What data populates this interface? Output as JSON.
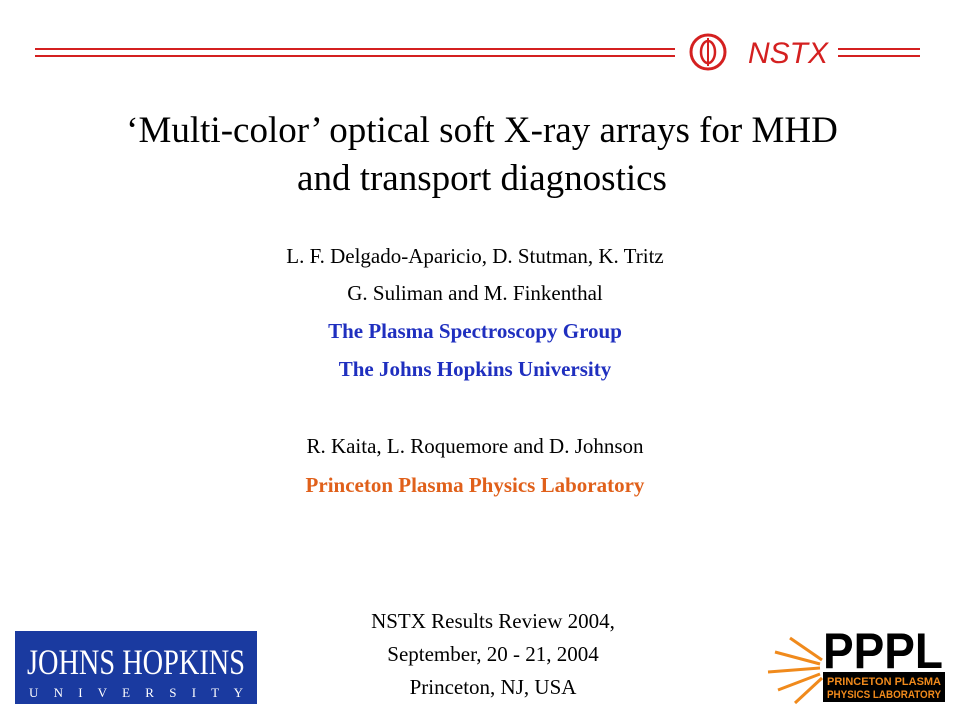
{
  "header": {
    "logo_text": "NSTX"
  },
  "title": {
    "lines": [
      "‘Multi-color’ optical soft X-ray arrays for MHD",
      "and transport diagnostics"
    ]
  },
  "authors": {
    "jhu_names": [
      "L. F. Delgado-Aparicio, D. Stutman, K. Tritz",
      "G. Suliman and M. Finkenthal"
    ],
    "jhu_affiliations": [
      "The Plasma Spectroscopy Group",
      "The Johns Hopkins University"
    ],
    "pppl_names": "R. Kaita, L. Roquemore and D. Johnson",
    "pppl_affiliation": "Princeton Plasma Physics Laboratory"
  },
  "footer": {
    "lines": [
      "NSTX Results Review 2004,",
      "September, 20 - 21, 2004",
      "Princeton, NJ, USA"
    ]
  },
  "logos": {
    "jhu": {
      "name": "JOHNS HOPKINS",
      "sub": "U N I V E R S I T Y"
    },
    "pppl": {
      "name": "PPPL",
      "sub": [
        "PRINCETON PLASMA",
        "PHYSICS LABORATORY"
      ]
    }
  }
}
